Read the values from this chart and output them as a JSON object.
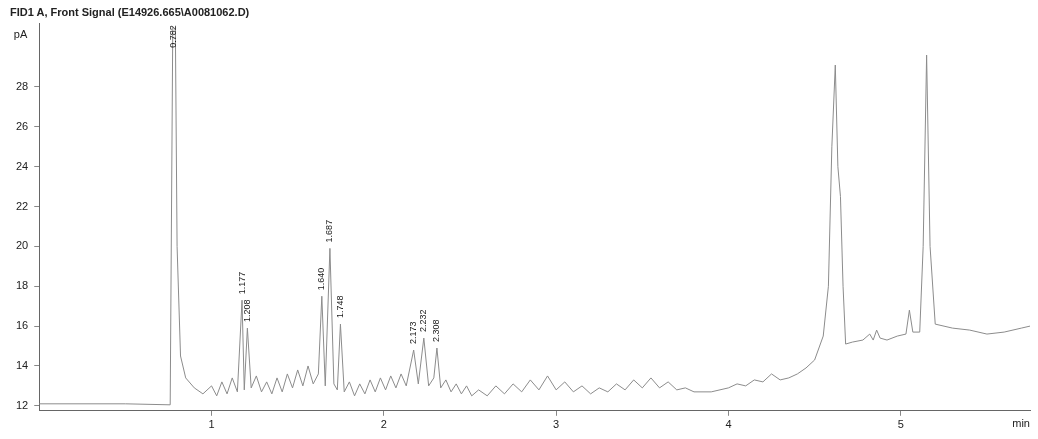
{
  "chart_data": {
    "type": "line",
    "title": "FID1 A, Front Signal (E14926.665\\A0081062.D)",
    "xlabel": "min",
    "ylabel": "pA",
    "xlim": [
      0,
      5.75
    ],
    "xticks": [
      1,
      2,
      3,
      4,
      5
    ],
    "ylim": [
      11.75,
      31.2
    ],
    "yticks": [
      12,
      14,
      16,
      18,
      20,
      22,
      24,
      26,
      28
    ],
    "grid": false,
    "legend": false,
    "marker": "none",
    "line_style": "solid",
    "x": [
      0,
      0.5,
      0.76,
      0.775,
      0.782,
      0.79,
      0.8,
      0.82,
      0.85,
      0.9,
      0.95,
      1.0,
      1.03,
      1.06,
      1.09,
      1.12,
      1.15,
      1.177,
      1.19,
      1.208,
      1.23,
      1.26,
      1.29,
      1.32,
      1.35,
      1.38,
      1.41,
      1.44,
      1.47,
      1.5,
      1.53,
      1.56,
      1.59,
      1.62,
      1.64,
      1.66,
      1.687,
      1.71,
      1.73,
      1.748,
      1.77,
      1.8,
      1.83,
      1.86,
      1.89,
      1.92,
      1.95,
      1.98,
      2.01,
      2.04,
      2.07,
      2.1,
      2.13,
      2.173,
      2.2,
      2.232,
      2.26,
      2.29,
      2.308,
      2.33,
      2.36,
      2.39,
      2.42,
      2.45,
      2.48,
      2.51,
      2.55,
      2.6,
      2.65,
      2.7,
      2.75,
      2.8,
      2.85,
      2.9,
      2.95,
      3.0,
      3.05,
      3.1,
      3.15,
      3.2,
      3.25,
      3.3,
      3.35,
      3.4,
      3.45,
      3.5,
      3.55,
      3.6,
      3.65,
      3.7,
      3.75,
      3.8,
      3.9,
      4.0,
      4.05,
      4.1,
      4.15,
      4.2,
      4.25,
      4.3,
      4.35,
      4.4,
      4.45,
      4.5,
      4.55,
      4.58,
      4.6,
      4.62,
      4.635,
      4.65,
      4.665,
      4.68,
      4.72,
      4.78,
      4.82,
      4.84,
      4.86,
      4.88,
      4.92,
      4.98,
      5.03,
      5.05,
      5.07,
      5.11,
      5.13,
      5.15,
      5.17,
      5.2,
      5.3,
      5.4,
      5.5,
      5.6,
      5.7,
      5.75
    ],
    "series": [
      {
        "color": "#8c8c8c",
        "values": [
          12.1,
          12.1,
          12.05,
          31.0,
          null,
          31.0,
          20,
          14.5,
          13.4,
          12.9,
          12.6,
          13.0,
          12.5,
          13.2,
          12.6,
          13.4,
          12.7,
          17.3,
          12.8,
          15.9,
          12.9,
          13.5,
          12.7,
          13.2,
          12.6,
          13.4,
          12.7,
          13.6,
          12.9,
          13.8,
          13.0,
          14.0,
          13.1,
          13.6,
          17.5,
          13.0,
          19.9,
          13.1,
          12.8,
          16.1,
          12.7,
          13.2,
          12.5,
          13.1,
          12.6,
          13.3,
          12.7,
          13.4,
          12.8,
          13.5,
          12.9,
          13.6,
          13.0,
          14.8,
          13.1,
          15.4,
          13.0,
          13.4,
          14.9,
          12.9,
          13.3,
          12.7,
          13.1,
          12.6,
          13.0,
          12.5,
          12.8,
          12.5,
          13.0,
          12.6,
          13.1,
          12.7,
          13.3,
          12.8,
          13.5,
          12.8,
          13.2,
          12.7,
          13.0,
          12.6,
          12.9,
          12.7,
          13.1,
          12.8,
          13.3,
          12.9,
          13.4,
          12.9,
          13.2,
          12.8,
          12.9,
          12.7,
          12.7,
          12.9,
          13.1,
          13.0,
          13.3,
          13.2,
          13.6,
          13.3,
          13.4,
          13.6,
          13.9,
          14.3,
          15.5,
          18,
          25,
          29.1,
          24,
          22.5,
          18,
          15.1,
          15.2,
          15.3,
          15.6,
          15.3,
          15.8,
          15.4,
          15.3,
          15.5,
          15.6,
          16.8,
          15.7,
          15.7,
          20,
          29.6,
          20,
          16.1,
          15.9,
          15.8,
          15.6,
          15.7,
          15.9,
          16.0
        ]
      }
    ],
    "annotations": [
      {
        "text": "0.782",
        "x": 0.782
      },
      {
        "text": "1.177",
        "x": 1.177,
        "y": 17.3
      },
      {
        "text": "1.208",
        "x": 1.208,
        "y": 15.9
      },
      {
        "text": "1.640",
        "x": 1.64,
        "y": 17.5
      },
      {
        "text": "1.687",
        "x": 1.687,
        "y": 19.9
      },
      {
        "text": "1.748",
        "x": 1.748,
        "y": 16.1
      },
      {
        "text": "2.173",
        "x": 2.173,
        "y": 14.8
      },
      {
        "text": "2.232",
        "x": 2.232,
        "y": 15.4
      },
      {
        "text": "2.308",
        "x": 2.308,
        "y": 14.9
      }
    ]
  }
}
